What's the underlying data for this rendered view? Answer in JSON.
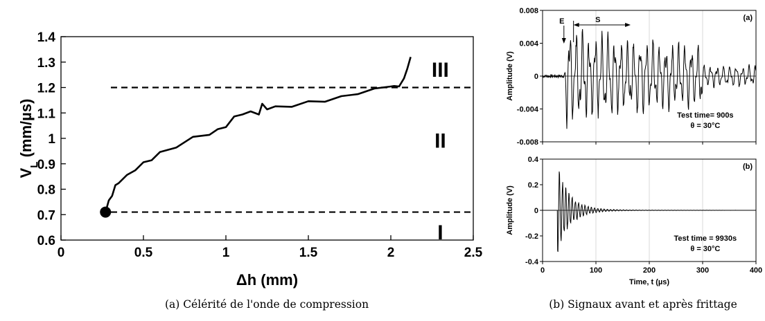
{
  "captions": {
    "a": "(a) Célérité de l'onde de compression",
    "b": "(b) Signaux avant et après frittage"
  },
  "chart_data": [
    {
      "type": "line",
      "xlabel": "Δh (mm)",
      "ylabel": "V_L (mm/µs)",
      "ylabel_main": "V",
      "ylabel_sub": "L",
      "ylabel_unit": " (mm/µs)",
      "xlim": [
        0,
        2.5
      ],
      "ylim": [
        0.6,
        1.4
      ],
      "xticks": [
        "0",
        "0.5",
        "1",
        "1.5",
        "2",
        "2.5"
      ],
      "yticks": [
        "0.6",
        "0.7",
        "0.8",
        "0.9",
        "1",
        "1.1",
        "1.2",
        "1.3",
        "1.4"
      ],
      "xtick_values": [
        0,
        0.5,
        1,
        1.5,
        2,
        2.5
      ],
      "ytick_values": [
        0.6,
        0.7,
        0.8,
        0.9,
        1.0,
        1.1,
        1.2,
        1.3,
        1.4
      ],
      "grid": false,
      "series": [
        {
          "x": [
            0.27,
            0.29,
            0.31,
            0.33,
            0.35,
            0.4,
            0.45,
            0.5,
            0.55,
            0.6,
            0.7,
            0.8,
            0.9,
            0.95,
            1.0,
            1.05,
            1.1,
            1.15,
            1.2,
            1.22,
            1.25,
            1.3,
            1.4,
            1.5,
            1.6,
            1.7,
            1.8,
            1.9,
            2.0,
            2.02,
            2.05,
            2.08,
            2.1,
            2.12
          ],
          "y": [
            0.71,
            0.75,
            0.78,
            0.81,
            0.83,
            0.85,
            0.88,
            0.9,
            0.92,
            0.94,
            0.97,
            1.0,
            1.02,
            1.03,
            1.05,
            1.08,
            1.1,
            1.1,
            1.1,
            1.13,
            1.12,
            1.12,
            1.13,
            1.14,
            1.15,
            1.16,
            1.18,
            1.19,
            1.21,
            1.2,
            1.21,
            1.23,
            1.28,
            1.32
          ]
        }
      ],
      "start_marker": {
        "x": 0.27,
        "y": 0.71
      },
      "reference_lines": [
        {
          "axis": "y",
          "value": 0.71,
          "style": "dashed"
        },
        {
          "axis": "y",
          "value": 1.2,
          "style": "dashed"
        }
      ],
      "zone_labels": [
        {
          "text": "III",
          "x": 2.3,
          "y": 1.27
        },
        {
          "text": "II",
          "x": 2.3,
          "y": 0.99
        },
        {
          "text": "I",
          "x": 2.3,
          "y": 0.63
        }
      ]
    },
    {
      "type": "line",
      "panel_label": "(a)",
      "ylabel": "Amplitude (V)",
      "xlim": [
        0,
        400
      ],
      "ylim": [
        -0.008,
        0.008
      ],
      "yticks": [
        "0.008",
        "0.004",
        "0",
        "-0.004",
        "-0.008"
      ],
      "ytick_values": [
        0.008,
        0.004,
        0,
        -0.004,
        -0.008
      ],
      "grid": "vertical",
      "annotations": {
        "E": "E",
        "S": "S",
        "test_time": "Test time= 900s",
        "theta": "θ = 30°C"
      },
      "signal": {
        "start": 40,
        "end": 400,
        "peak_amplitude": 0.0065,
        "dominant_period": 12
      }
    },
    {
      "type": "line",
      "panel_label": "(b)",
      "xlabel": "Time, t (µs)",
      "ylabel": "Amplitude (V)",
      "xlim": [
        0,
        400
      ],
      "ylim": [
        -0.4,
        0.4
      ],
      "xticks": [
        "0",
        "100",
        "200",
        "300",
        "400"
      ],
      "xtick_values": [
        0,
        100,
        200,
        300,
        400
      ],
      "yticks": [
        "0.4",
        "0.2",
        "0",
        "-0.2",
        "-0.4"
      ],
      "ytick_values": [
        0.4,
        0.2,
        0,
        -0.2,
        -0.4
      ],
      "grid": "vertical",
      "annotations": {
        "test_time": "Test time = 9930s",
        "theta": "θ = 30°C"
      },
      "signal": {
        "start": 28,
        "peak_amplitude": 0.37,
        "decay_end": 200,
        "dominant_period": 6
      }
    }
  ]
}
